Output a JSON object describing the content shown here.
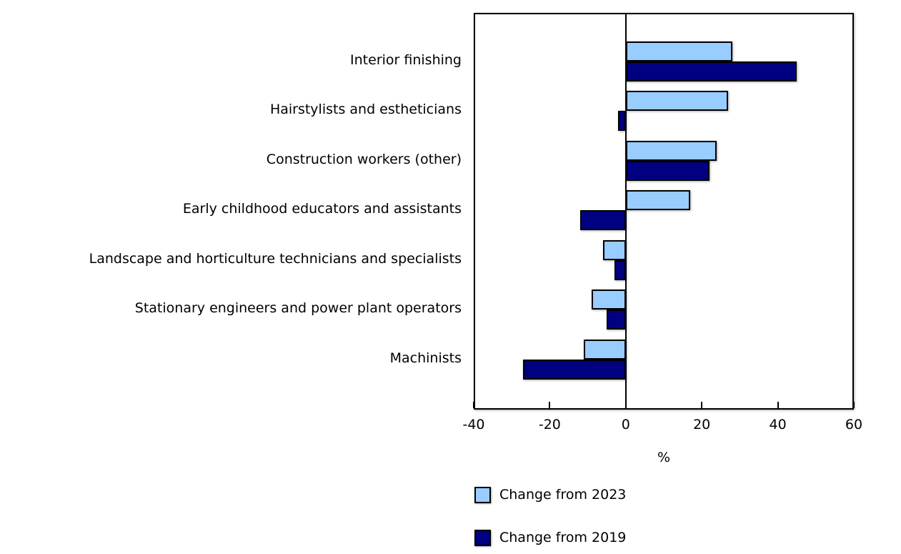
{
  "chart_data": {
    "type": "bar",
    "orientation": "horizontal",
    "title": "",
    "xlabel": "%",
    "xlim": [
      -40,
      60
    ],
    "xticks": [
      -40,
      -20,
      0,
      20,
      40,
      60
    ],
    "grid": false,
    "legend_position": "bottom",
    "bar_border_color": "#000000",
    "categories": [
      "Interior finishing",
      "Hairstylists and estheticians",
      "Construction workers (other)",
      "Early childhood educators and assistants",
      "Landscape and horticulture technicians and specialists",
      "Stationary engineers and power plant operators",
      "Machinists"
    ],
    "series": [
      {
        "name": "Change from 2023",
        "color": "#99CCFF",
        "values": [
          28,
          27,
          24,
          17,
          -6,
          -9,
          -11
        ]
      },
      {
        "name": "Change from 2019",
        "color": "#000080",
        "values": [
          45,
          -2,
          22,
          -12,
          -3,
          -5,
          -27
        ]
      }
    ]
  },
  "legend": {
    "items": [
      {
        "label": "Change from 2023",
        "color": "#99CCFF"
      },
      {
        "label": "Change from 2019",
        "color": "#000080"
      }
    ]
  }
}
